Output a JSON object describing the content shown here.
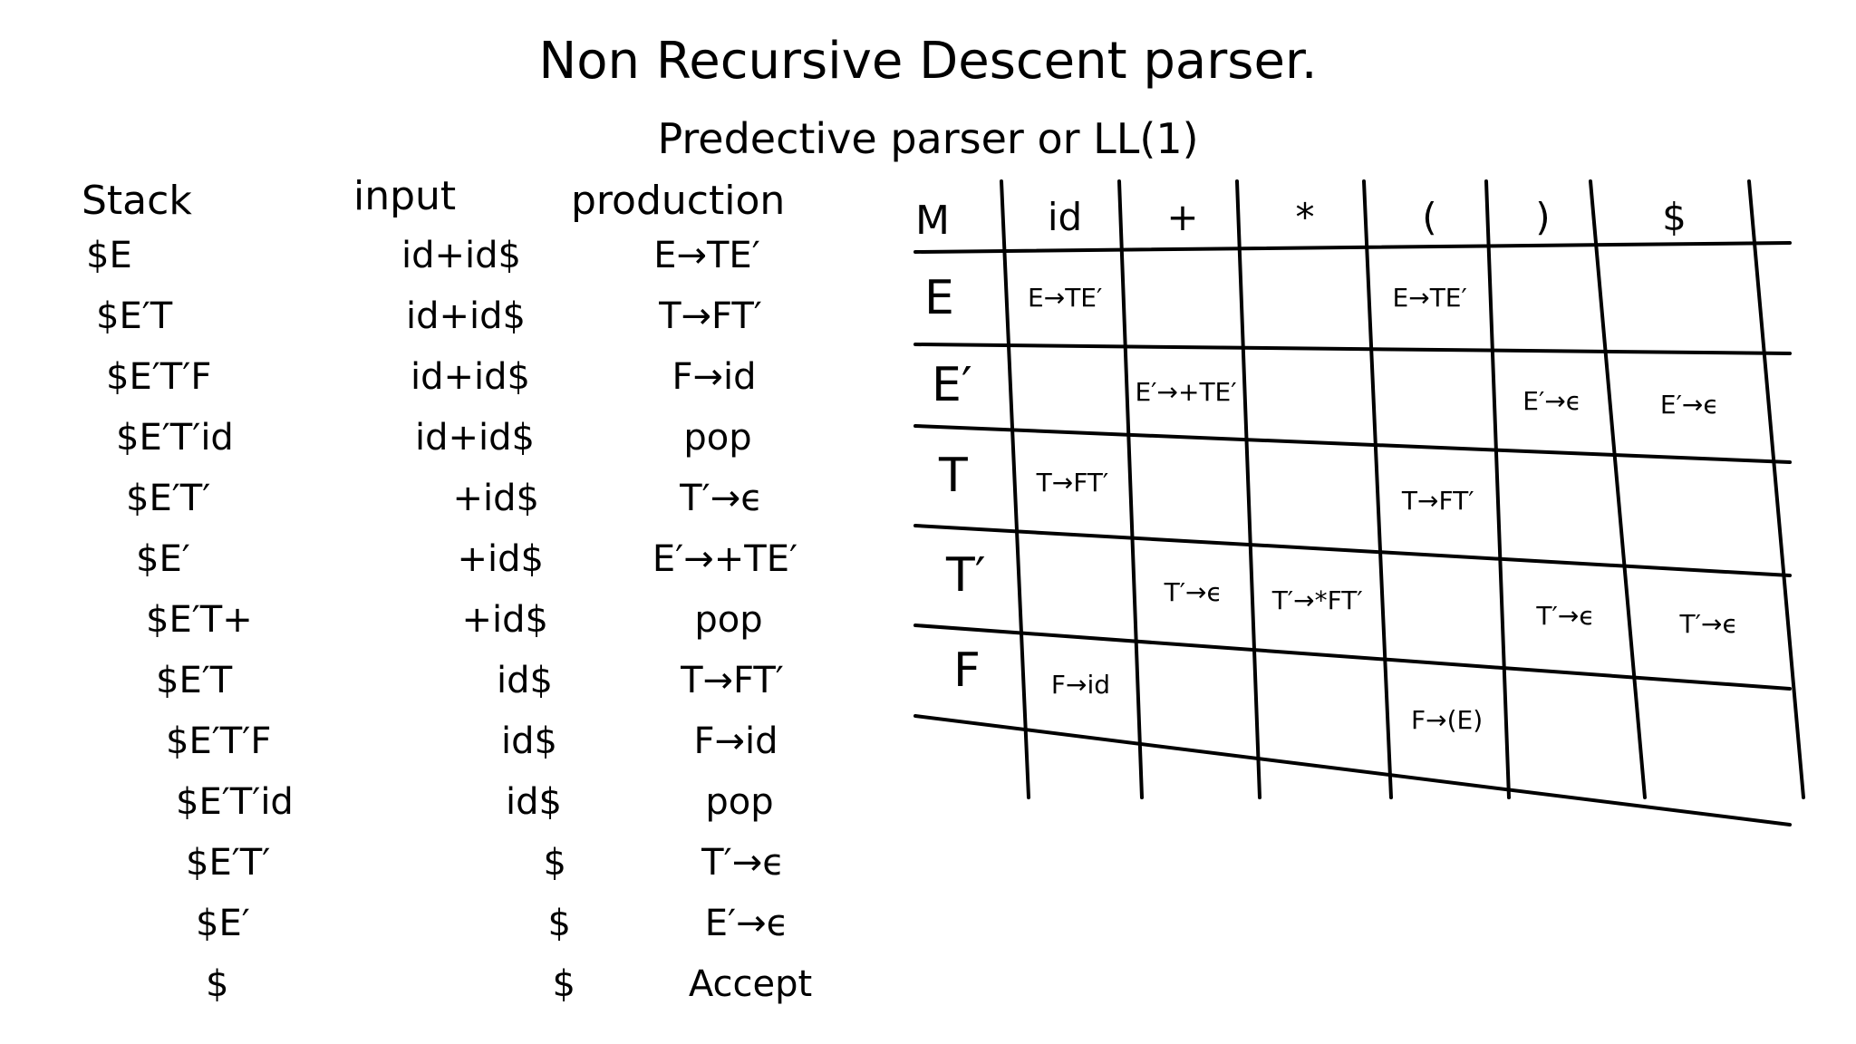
{
  "title": "Non Recursive Descent parser.",
  "subtitle": "Predective parser or LL(1)",
  "trace": {
    "headers": {
      "stack": "Stack",
      "input": "input",
      "production": "production"
    },
    "rows": [
      {
        "stack": "$E",
        "input": "id+id$",
        "production": "E→TE′"
      },
      {
        "stack": "$E′T",
        "input": "id+id$",
        "production": "T→FT′"
      },
      {
        "stack": "$E′T′F",
        "input": "id+id$",
        "production": "F→id"
      },
      {
        "stack": "$E′T′id",
        "input": "id+id$",
        "production": "pop"
      },
      {
        "stack": "$E′T′",
        "input": "+id$",
        "production": "T′→ϵ"
      },
      {
        "stack": "$E′",
        "input": "+id$",
        "production": "E′→+TE′"
      },
      {
        "stack": "$E′T+",
        "input": "+id$",
        "production": "pop"
      },
      {
        "stack": "$E′T",
        "input": "id$",
        "production": "T→FT′"
      },
      {
        "stack": "$E′T′F",
        "input": "id$",
        "production": "F→id"
      },
      {
        "stack": "$E′T′id",
        "input": "id$",
        "production": "pop"
      },
      {
        "stack": "$E′T′",
        "input": "$",
        "production": "T′→ϵ"
      },
      {
        "stack": "$E′",
        "input": "$",
        "production": "E′→ϵ"
      },
      {
        "stack": "$",
        "input": "$",
        "production": "Accept"
      }
    ]
  },
  "table": {
    "corner": "M",
    "columns": [
      "id",
      "+",
      "*",
      "(",
      ")",
      "$"
    ],
    "rows": [
      {
        "nonterminal": "E",
        "cells": [
          "E→TE′",
          "",
          "",
          "E→TE′",
          "",
          ""
        ]
      },
      {
        "nonterminal": "E′",
        "cells": [
          "",
          "E′→+TE′",
          "",
          "",
          "E′→ϵ",
          "E′→ϵ"
        ]
      },
      {
        "nonterminal": "T",
        "cells": [
          "T→FT′",
          "",
          "",
          "T→FT′",
          "",
          ""
        ]
      },
      {
        "nonterminal": "T′",
        "cells": [
          "",
          "T′→ϵ",
          "T′→*FT′",
          "",
          "T′→ϵ",
          "T′→ϵ"
        ]
      },
      {
        "nonterminal": "F",
        "cells": [
          "F→id",
          "",
          "",
          "F→(E)",
          "",
          ""
        ]
      }
    ]
  }
}
